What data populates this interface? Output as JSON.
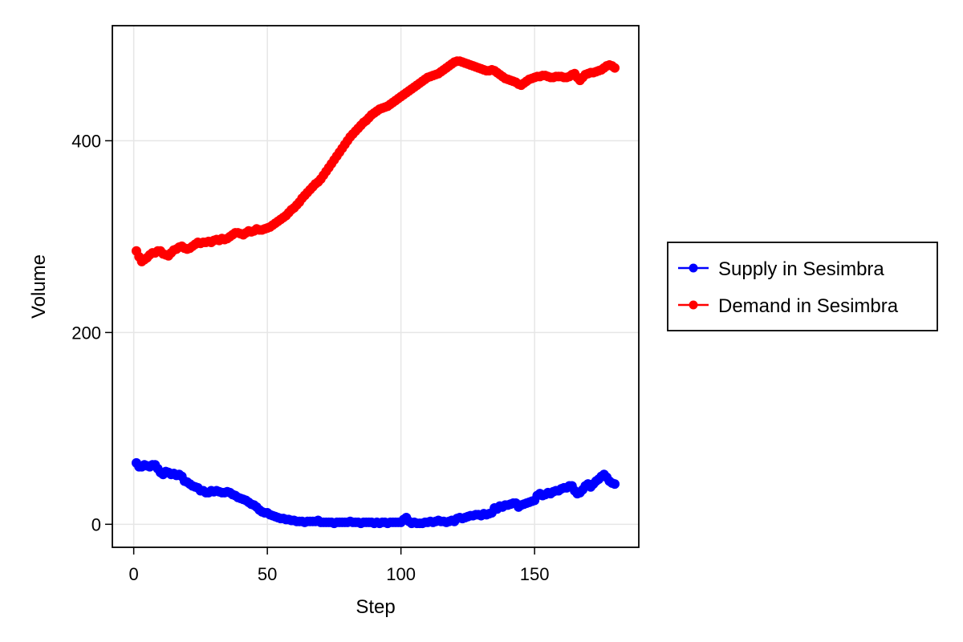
{
  "chart_data": {
    "type": "scatter",
    "xlabel": "Step",
    "ylabel": "Volume",
    "xlim": [
      -8,
      189
    ],
    "ylim": [
      -24,
      520
    ],
    "xticks": [
      0,
      50,
      100,
      150
    ],
    "yticks": [
      0,
      200,
      400
    ],
    "grid": true,
    "legend_position": "right",
    "series": [
      {
        "name": "Supply in Sesimbra",
        "color": "#0000ff",
        "x": [
          1,
          2,
          3,
          4,
          5,
          6,
          7,
          8,
          9,
          10,
          11,
          12,
          13,
          14,
          15,
          16,
          17,
          18,
          19,
          20,
          21,
          22,
          23,
          24,
          25,
          26,
          27,
          28,
          29,
          30,
          31,
          32,
          33,
          34,
          35,
          36,
          37,
          38,
          39,
          40,
          41,
          42,
          43,
          44,
          45,
          46,
          47,
          48,
          49,
          50,
          51,
          52,
          53,
          54,
          55,
          56,
          57,
          58,
          59,
          60,
          61,
          62,
          63,
          64,
          65,
          66,
          67,
          68,
          69,
          70,
          71,
          72,
          73,
          74,
          75,
          76,
          77,
          78,
          79,
          80,
          81,
          82,
          83,
          84,
          85,
          86,
          87,
          88,
          89,
          90,
          91,
          92,
          93,
          94,
          95,
          96,
          97,
          98,
          99,
          100,
          101,
          102,
          103,
          104,
          105,
          106,
          107,
          108,
          109,
          110,
          111,
          112,
          113,
          114,
          115,
          116,
          117,
          118,
          119,
          120,
          121,
          122,
          123,
          124,
          125,
          126,
          127,
          128,
          129,
          130,
          131,
          132,
          133,
          134,
          135,
          136,
          137,
          138,
          139,
          140,
          141,
          142,
          143,
          144,
          145,
          146,
          147,
          148,
          149,
          150,
          151,
          152,
          153,
          154,
          155,
          156,
          157,
          158,
          159,
          160,
          161,
          162,
          163,
          164,
          165,
          166,
          167,
          168,
          169,
          170,
          171,
          172,
          173,
          174,
          175,
          176,
          177,
          178,
          179,
          180
        ],
        "y": [
          64,
          60,
          60,
          62,
          61,
          60,
          62,
          62,
          58,
          54,
          52,
          55,
          54,
          52,
          53,
          51,
          52,
          50,
          45,
          44,
          42,
          40,
          39,
          38,
          35,
          35,
          33,
          33,
          35,
          34,
          35,
          34,
          33,
          33,
          34,
          33,
          31,
          30,
          28,
          27,
          26,
          25,
          23,
          21,
          20,
          18,
          15,
          13,
          12,
          12,
          10,
          9,
          8,
          7,
          6,
          6,
          5,
          5,
          4,
          4,
          3,
          3,
          3,
          2,
          3,
          3,
          3,
          3,
          4,
          2,
          2,
          2,
          2,
          2,
          1,
          2,
          2,
          2,
          2,
          2,
          3,
          2,
          2,
          2,
          1,
          2,
          2,
          2,
          2,
          1,
          2,
          1,
          2,
          2,
          1,
          2,
          2,
          2,
          2,
          2,
          5,
          7,
          3,
          1,
          2,
          1,
          1,
          1,
          2,
          2,
          3,
          2,
          3,
          4,
          3,
          3,
          2,
          3,
          4,
          3,
          6,
          7,
          6,
          7,
          8,
          9,
          9,
          10,
          10,
          9,
          11,
          10,
          11,
          12,
          17,
          16,
          19,
          18,
          20,
          20,
          21,
          22,
          22,
          18,
          20,
          21,
          22,
          23,
          24,
          25,
          30,
          32,
          30,
          31,
          33,
          32,
          34,
          35,
          35,
          37,
          38,
          38,
          40,
          40,
          35,
          32,
          33,
          36,
          40,
          42,
          39,
          42,
          45,
          47,
          50,
          52,
          49,
          45,
          43,
          42
        ]
      },
      {
        "name": "Demand in Sesimbra",
        "color": "#ff0000",
        "x": [
          1,
          2,
          3,
          4,
          5,
          6,
          7,
          8,
          9,
          10,
          11,
          12,
          13,
          14,
          15,
          16,
          17,
          18,
          19,
          20,
          21,
          22,
          23,
          24,
          25,
          26,
          27,
          28,
          29,
          30,
          31,
          32,
          33,
          34,
          35,
          36,
          37,
          38,
          39,
          40,
          41,
          42,
          43,
          44,
          45,
          46,
          47,
          48,
          49,
          50,
          51,
          52,
          53,
          54,
          55,
          56,
          57,
          58,
          59,
          60,
          61,
          62,
          63,
          64,
          65,
          66,
          67,
          68,
          69,
          70,
          71,
          72,
          73,
          74,
          75,
          76,
          77,
          78,
          79,
          80,
          81,
          82,
          83,
          84,
          85,
          86,
          87,
          88,
          89,
          90,
          91,
          92,
          93,
          94,
          95,
          96,
          97,
          98,
          99,
          100,
          101,
          102,
          103,
          104,
          105,
          106,
          107,
          108,
          109,
          110,
          111,
          112,
          113,
          114,
          115,
          116,
          117,
          118,
          119,
          120,
          121,
          122,
          123,
          124,
          125,
          126,
          127,
          128,
          129,
          130,
          131,
          132,
          133,
          134,
          135,
          136,
          137,
          138,
          139,
          140,
          141,
          142,
          143,
          144,
          145,
          146,
          147,
          148,
          149,
          150,
          151,
          152,
          153,
          154,
          155,
          156,
          157,
          158,
          159,
          160,
          161,
          162,
          163,
          164,
          165,
          166,
          167,
          168,
          169,
          170,
          171,
          172,
          173,
          174,
          175,
          176,
          177,
          178,
          179,
          180
        ],
        "y": [
          285,
          279,
          274,
          276,
          278,
          281,
          283,
          283,
          285,
          285,
          282,
          281,
          280,
          283,
          286,
          287,
          289,
          290,
          288,
          287,
          288,
          290,
          292,
          294,
          293,
          294,
          294,
          295,
          294,
          296,
          297,
          296,
          298,
          297,
          298,
          300,
          302,
          304,
          304,
          303,
          302,
          304,
          306,
          305,
          306,
          308,
          307,
          307,
          308,
          309,
          310,
          312,
          314,
          316,
          318,
          320,
          322,
          325,
          328,
          330,
          333,
          336,
          340,
          343,
          346,
          349,
          352,
          355,
          357,
          360,
          364,
          368,
          372,
          376,
          380,
          384,
          388,
          392,
          396,
          400,
          404,
          407,
          410,
          413,
          416,
          419,
          421,
          424,
          427,
          429,
          431,
          433,
          434,
          435,
          436,
          438,
          440,
          442,
          444,
          446,
          448,
          450,
          452,
          454,
          456,
          458,
          460,
          462,
          464,
          466,
          467,
          468,
          469,
          470,
          472,
          474,
          476,
          478,
          480,
          482,
          483,
          483,
          482,
          481,
          480,
          479,
          478,
          477,
          476,
          475,
          474,
          473,
          473,
          474,
          473,
          471,
          469,
          467,
          465,
          464,
          463,
          462,
          461,
          459,
          458,
          460,
          462,
          464,
          465,
          466,
          467,
          467,
          468,
          468,
          467,
          466,
          466,
          467,
          467,
          467,
          466,
          466,
          467,
          469,
          470,
          466,
          463,
          466,
          469,
          470,
          471,
          471,
          472,
          473,
          474,
          476,
          478,
          479,
          478,
          476
        ]
      }
    ]
  }
}
